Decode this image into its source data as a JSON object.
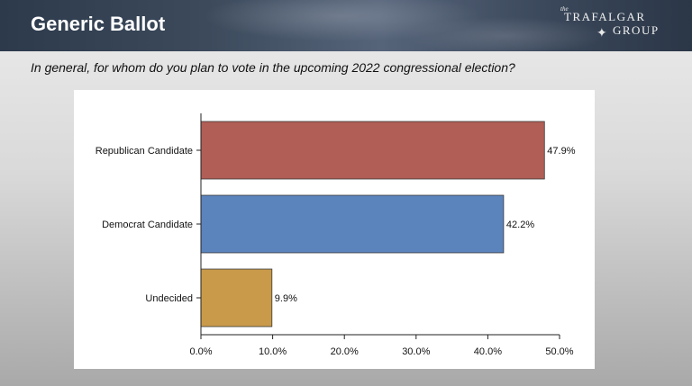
{
  "header": {
    "title": "Generic Ballot",
    "logo": {
      "the": "the",
      "line1": "TRAFALGAR",
      "line2": "GROUP",
      "icon": "compass-star-icon"
    }
  },
  "question": "In general, for whom do you plan to vote in the upcoming 2022 congressional election?",
  "chart_data": {
    "type": "bar",
    "orientation": "horizontal",
    "categories": [
      "Republican Candidate",
      "Democrat Candidate",
      "Undecided"
    ],
    "values": [
      47.9,
      42.2,
      9.9
    ],
    "value_labels": [
      "47.9%",
      "42.2%",
      "9.9%"
    ],
    "colors": [
      "#b05e56",
      "#5b84bc",
      "#c99a4a"
    ],
    "xlim": [
      0,
      50
    ],
    "xticks": [
      0,
      10,
      20,
      30,
      40,
      50
    ],
    "xtick_labels": [
      "0.0%",
      "10.0%",
      "20.0%",
      "30.0%",
      "40.0%",
      "50.0%"
    ],
    "grid": false,
    "legend": "none"
  }
}
